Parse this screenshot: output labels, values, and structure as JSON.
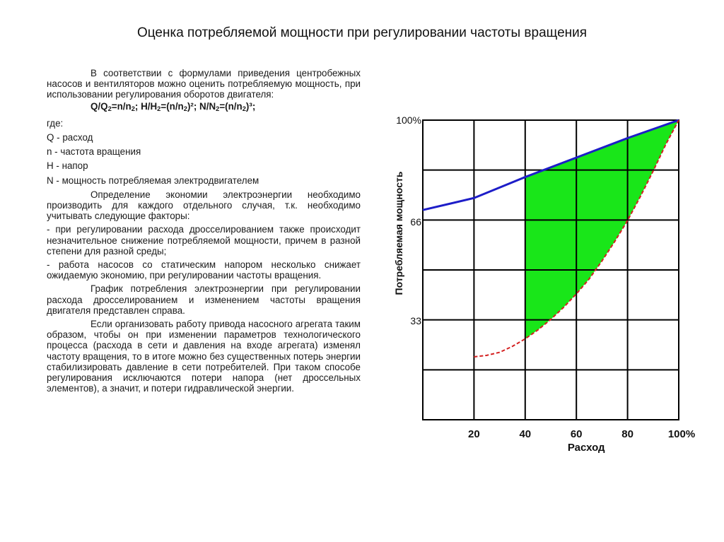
{
  "slide": {
    "title": "Оценка потребляемой мощности при регулировании частоты вращения"
  },
  "text": {
    "intro": "В соответствии с формулами приведения центробежных насосов и вентиляторов можно оценить потребляемую мощность, при использовании регулирования оборотов двигателя:",
    "formula": {
      "q1": "Q/Q",
      "s1": "2",
      "q2": "=n/n",
      "s2": "2",
      "q3": "; H/H",
      "s3": "2",
      "q4": "=(n/n",
      "s4": "2",
      "q5": ")²; N/N",
      "s5": "2",
      "q6": "=(n/n",
      "s6": "2",
      "q7": ")³;"
    },
    "where": "где:",
    "legend": [
      "Q - расход",
      "n - частота вращения",
      "H - напор",
      "N - мощность потребляемая электродвигателем"
    ],
    "p_determination": "Определение экономии электроэнергии необходимо производить для каждого отдельного случая, т.к. необходимо учитывать следующие факторы:",
    "bullet1": "- при регулировании расхода дросселированием также происходит незначительное снижение потребляемой мощности, причем в разной степени для разной среды;",
    "bullet2": "- работа насосов со статическим напором несколько снижает ожидаемую экономию, при регулировании частоты вращения.",
    "p_graph": "График потребления электроэнергии при регулировании расхода дросселированием и изменением частоты вращения двигателя представлен справа.",
    "p_organize": "Если организовать работу привода насосного агрегата таким образом, чтобы он при изменении параметров технологического процесса (расхода в сети и давления на входе агрегата) изменял частоту вращения, то в итоге можно без существенных потерь энергии стабилизировать давление в сети потребителей. При таком способе регулирования исключаются потери напора (нет дроссельных элементов), а значит, и потери гидравлической энергии."
  },
  "chart_data": {
    "type": "line",
    "xlabel": "Расход",
    "ylabel": "Потребляемая мощность",
    "x_ticks": [
      "20",
      "40",
      "60",
      "80",
      "100%"
    ],
    "y_ticks": [
      "100%",
      "66",
      "33"
    ],
    "xlim": [
      0,
      100
    ],
    "ylim": [
      0,
      100
    ],
    "grid": true,
    "colors": {
      "throttle": "#1d1dc8",
      "vfd": "#d42020",
      "savings": "#19e619",
      "grid": "#000000"
    },
    "series": [
      {
        "key": "throttle",
        "style": "solid",
        "x": [
          0,
          20,
          40,
          60,
          80,
          100
        ],
        "y": [
          70,
          74,
          81,
          87.5,
          94,
          100
        ]
      },
      {
        "key": "vfd",
        "style": "dashed",
        "x": [
          20,
          25,
          30,
          35,
          40,
          45,
          50,
          55,
          60,
          65,
          70,
          75,
          80,
          85,
          90,
          95,
          100
        ],
        "y": [
          21,
          21.5,
          22.5,
          24.5,
          27,
          30,
          33.5,
          37.5,
          42,
          47,
          53,
          59.5,
          66.5,
          74.5,
          83,
          92,
          100
        ]
      }
    ],
    "savings_area": {
      "from_x": 40,
      "to_x": 100
    }
  }
}
